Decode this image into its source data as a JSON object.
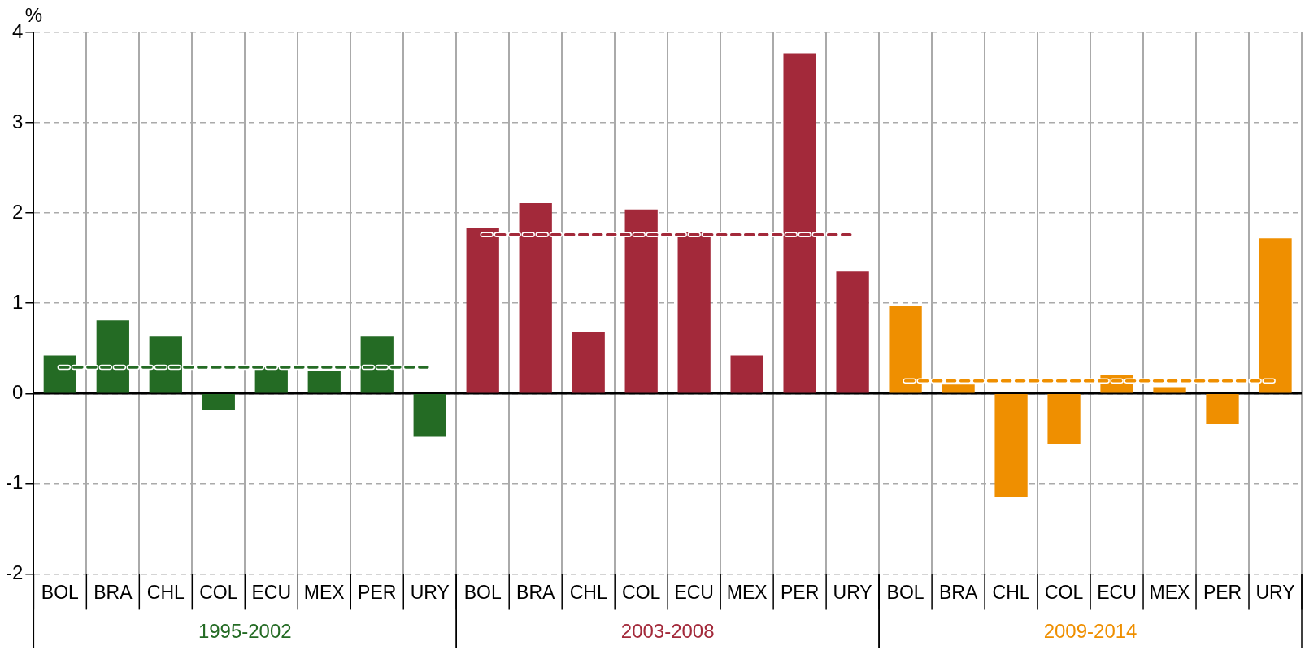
{
  "chart_data": {
    "type": "bar",
    "ylabel": "%",
    "categories": [
      "BOL",
      "BRA",
      "CHL",
      "COL",
      "ECU",
      "MEX",
      "PER",
      "URY",
      "BOL",
      "BRA",
      "CHL",
      "COL",
      "ECU",
      "MEX",
      "PER",
      "URY",
      "BOL",
      "BRA",
      "CHL",
      "COL",
      "ECU",
      "MEX",
      "PER",
      "URY"
    ],
    "series": [
      {
        "name": "1995-2002",
        "color": "#246b24",
        "values": [
          0.42,
          0.81,
          0.63,
          -0.18,
          0.29,
          0.25,
          0.63,
          -0.48,
          null,
          null,
          null,
          null,
          null,
          null,
          null,
          null,
          null,
          null,
          null,
          null,
          null,
          null,
          null,
          null
        ]
      },
      {
        "name": "2003-2008",
        "color": "#a3293a",
        "values": [
          null,
          null,
          null,
          null,
          null,
          null,
          null,
          null,
          1.83,
          2.11,
          0.68,
          2.04,
          1.79,
          0.42,
          3.77,
          1.35,
          null,
          null,
          null,
          null,
          null,
          null,
          null,
          null
        ]
      },
      {
        "name": "2009-2014",
        "color": "#ef8f00",
        "values": [
          null,
          null,
          null,
          null,
          null,
          null,
          null,
          null,
          null,
          null,
          null,
          null,
          null,
          null,
          null,
          null,
          0.97,
          0.1,
          -1.15,
          -0.56,
          0.2,
          0.07,
          -0.34,
          1.72
        ]
      },
      {
        "type": "line",
        "line_style": "dashed",
        "color": "#246b24",
        "values": [
          0.29,
          0.29,
          0.29,
          0.29,
          0.29,
          0.29,
          0.29,
          0.29,
          null,
          null,
          null,
          null,
          null,
          null,
          null,
          null,
          null,
          null,
          null,
          null,
          null,
          null,
          null,
          null
        ]
      },
      {
        "type": "line",
        "line_style": "dashed",
        "color": "#a3293a",
        "values": [
          null,
          null,
          null,
          null,
          null,
          null,
          null,
          null,
          1.76,
          1.76,
          1.76,
          1.76,
          1.76,
          1.76,
          1.76,
          1.76,
          null,
          null,
          null,
          null,
          null,
          null,
          null,
          null
        ]
      },
      {
        "type": "line",
        "line_style": "dashed",
        "color": "#ef8f00",
        "values": [
          null,
          null,
          null,
          null,
          null,
          null,
          null,
          null,
          null,
          null,
          null,
          null,
          null,
          null,
          null,
          null,
          0.14,
          0.14,
          0.14,
          0.14,
          0.14,
          0.14,
          0.14,
          0.14
        ]
      }
    ],
    "ylim": [
      -2,
      4
    ],
    "yticks": [
      -2,
      -1,
      0,
      1,
      2,
      3,
      4
    ],
    "grid": true,
    "legend": false,
    "marker": "none"
  }
}
